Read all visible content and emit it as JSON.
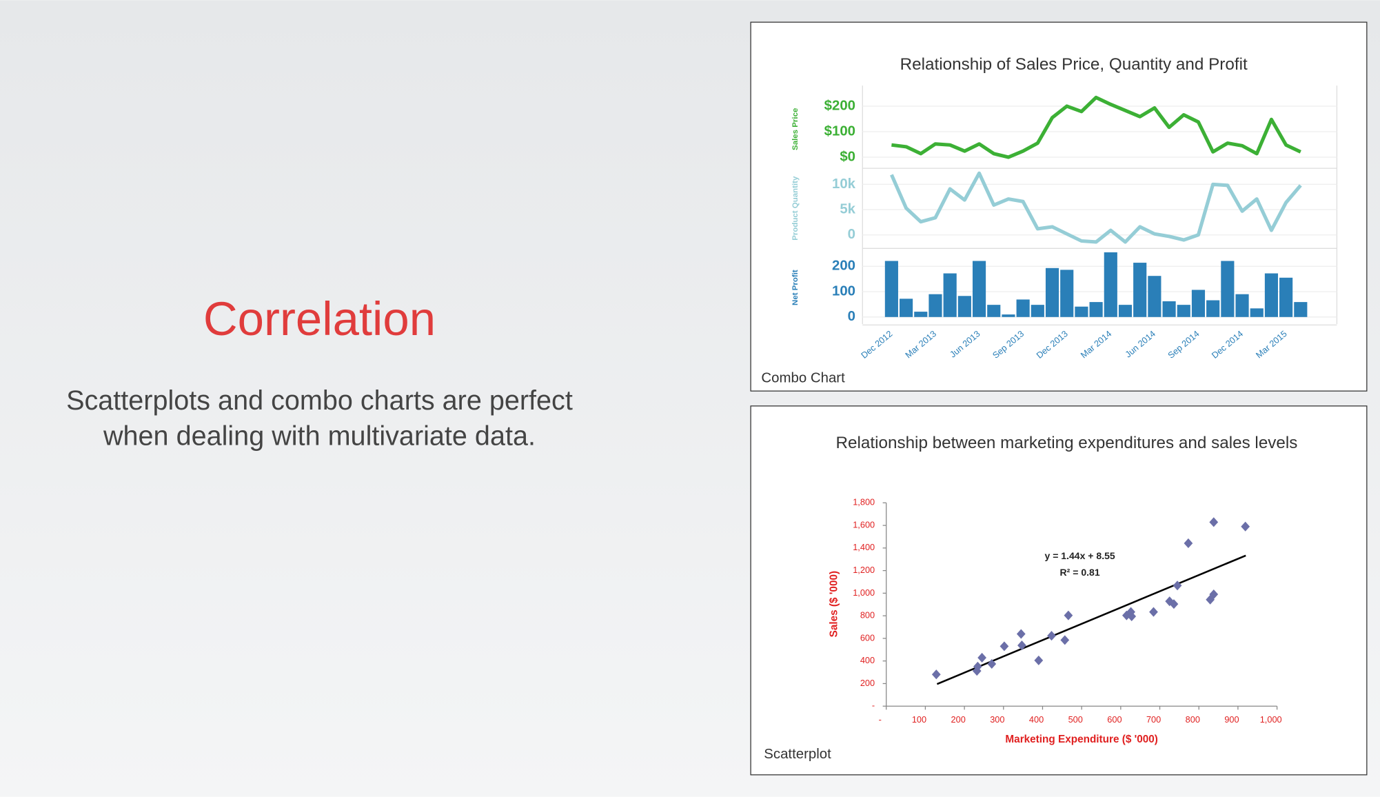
{
  "slide": {
    "title": "Correlation",
    "body": [
      "Scatterplots and combo charts are perfect",
      "when dealing with multivariate data."
    ]
  },
  "chart_data": [
    {
      "type": "combo",
      "title": "Relationship of Sales Price, Quantity and Profit",
      "caption": "Combo Chart",
      "categories": [
        "Dec 2012",
        null,
        null,
        "Mar 2013",
        null,
        null,
        "Jun 2013",
        null,
        null,
        "Sep 2013",
        null,
        null,
        "Dec 2013",
        null,
        null,
        "Mar 2014",
        null,
        null,
        "Jun 2014",
        null,
        null,
        "Sep 2014",
        null,
        null,
        "Dec 2014",
        null,
        null,
        "Mar 2015",
        null
      ],
      "panels": [
        {
          "type": "line",
          "name": "Sales Price",
          "color": "#3cb035",
          "ylim": [
            -40,
            260
          ],
          "yticks": [
            {
              "value": 0,
              "label": "$0"
            },
            {
              "value": 100,
              "label": "$100"
            },
            {
              "value": 200,
              "label": "$200"
            }
          ],
          "values": [
            48,
            41,
            14,
            52,
            48,
            24,
            52,
            14,
            0,
            24,
            55,
            155,
            200,
            179,
            234,
            207,
            183,
            159,
            193,
            117,
            166,
            138,
            21,
            55,
            45,
            14,
            148,
            48,
            21
          ]
        },
        {
          "type": "line",
          "name": "Product Quantity",
          "color": "#95cdd6",
          "ylim": [
            -2500,
            13000
          ],
          "yticks": [
            0,
            {
              "value": 5000,
              "label": "5k"
            },
            {
              "value": 10000,
              "label": "10k"
            }
          ],
          "values": [
            11900,
            5300,
            2600,
            3400,
            9100,
            6900,
            12200,
            5900,
            7100,
            6600,
            1200,
            1600,
            200,
            -1200,
            -1400,
            900,
            -1400,
            1600,
            200,
            -300,
            -1000,
            0,
            10000,
            9800,
            4700,
            7100,
            900,
            6400,
            9800
          ]
        },
        {
          "type": "bar",
          "name": "Net Profit",
          "color": "#2a7fb8",
          "ylim": [
            -28,
            260
          ],
          "yticks": [
            0,
            100,
            200
          ],
          "values": [
            221,
            72,
            21,
            90,
            172,
            83,
            221,
            48,
            10,
            69,
            48,
            193,
            186,
            41,
            59,
            255,
            48,
            214,
            162,
            62,
            48,
            107,
            66,
            221,
            90,
            34,
            172,
            155,
            59
          ]
        }
      ]
    },
    {
      "type": "scatter",
      "title": "Relationship between marketing expenditures and sales levels",
      "caption": "Scatterplot",
      "xlabel": "Marketing Expenditure ($ '000)",
      "ylabel": "Sales ($ '000)",
      "color": "#6b6fa8",
      "x": [
        128,
        232,
        234,
        245,
        270,
        302,
        345,
        347,
        390,
        423,
        457,
        466,
        615,
        626,
        628,
        684,
        725,
        736,
        745,
        773,
        829,
        838,
        838,
        919
      ],
      "values": [
        281,
        312,
        351,
        429,
        374,
        530,
        639,
        538,
        405,
        623,
        585,
        803,
        803,
        834,
        795,
        834,
        928,
        904,
        1068,
        1442,
        943,
        990,
        1629,
        1590
      ],
      "xlim": [
        0,
        1000
      ],
      "ylim": [
        0,
        1800
      ],
      "xticks": [
        {
          "value": 0,
          "label": "-"
        },
        100,
        200,
        300,
        400,
        500,
        600,
        700,
        800,
        900,
        {
          "value": 1000,
          "label": "1,000"
        }
      ],
      "yticks": [
        {
          "value": 0,
          "label": "-"
        },
        200,
        400,
        600,
        800,
        {
          "value": 1000,
          "label": "1,000"
        },
        {
          "value": 1200,
          "label": "1,200"
        },
        {
          "value": 1400,
          "label": "1,400"
        },
        {
          "value": 1600,
          "label": "1,600"
        },
        {
          "value": 1800,
          "label": "1,800"
        }
      ],
      "trendline": {
        "equation": "y = 1.44x + 8.55",
        "r2": "R² = 0.81",
        "slope": 1.44,
        "intercept": 8.55,
        "x_range": [
          130,
          920
        ]
      }
    }
  ]
}
